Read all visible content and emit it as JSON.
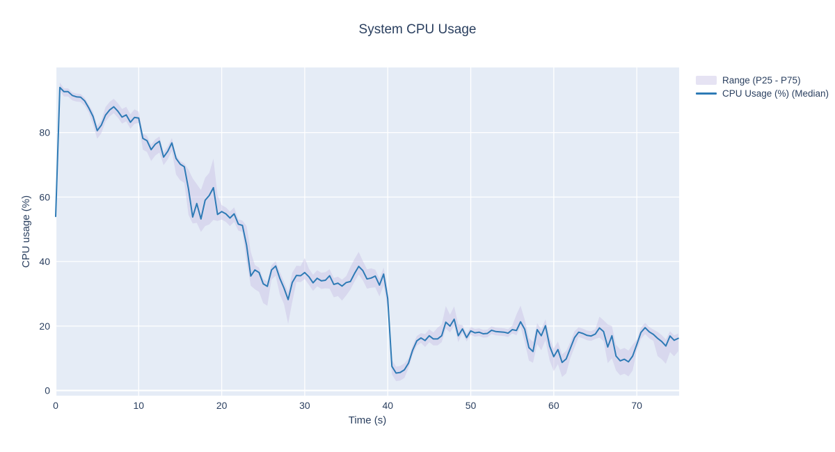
{
  "page": {
    "background": "#ffffff"
  },
  "chart_data": {
    "type": "line",
    "title": "System CPU Usage",
    "xlabel": "Time (s)",
    "ylabel": "CPU usage (%)",
    "xlim": [
      0,
      75.1
    ],
    "ylim": [
      -1.6,
      100.2
    ],
    "x_ticks": [
      0,
      10,
      20,
      30,
      40,
      50,
      60,
      70
    ],
    "y_ticks": [
      0,
      20,
      40,
      60,
      80
    ],
    "grid": true,
    "legend_position": "outside-top-right",
    "colors": {
      "plot_bg": "#e5ecf6",
      "grid": "#ffffff",
      "text": "#2a3f5f",
      "line": "#2d7ab5",
      "band_fill": "rgba(200,192,228,0.45)"
    },
    "x": [
      0,
      0.5,
      1,
      1.5,
      2,
      2.5,
      3,
      3.5,
      4,
      4.5,
      5,
      5.5,
      6,
      6.5,
      7,
      7.5,
      8,
      8.5,
      9,
      9.5,
      10,
      10.5,
      11,
      11.5,
      12,
      12.5,
      13,
      13.5,
      14,
      14.5,
      15,
      15.5,
      16,
      16.5,
      17,
      17.5,
      18,
      18.5,
      19,
      19.5,
      20,
      20.5,
      21,
      21.5,
      22,
      22.5,
      23,
      23.5,
      24,
      24.5,
      25,
      25.5,
      26,
      26.5,
      27,
      27.5,
      28,
      28.5,
      29,
      29.5,
      30,
      30.5,
      31,
      31.5,
      32,
      32.5,
      33,
      33.5,
      34,
      34.5,
      35,
      35.5,
      36,
      36.5,
      37,
      37.5,
      38,
      38.5,
      39,
      39.5,
      40,
      40.5,
      41,
      41.5,
      42,
      42.5,
      43,
      43.5,
      44,
      44.5,
      45,
      45.5,
      46,
      46.5,
      47,
      47.5,
      48,
      48.5,
      49,
      49.5,
      50,
      50.5,
      51,
      51.5,
      52,
      52.5,
      53,
      53.5,
      54,
      54.5,
      55,
      55.5,
      56,
      56.5,
      57,
      57.5,
      58,
      58.5,
      59,
      59.5,
      60,
      60.5,
      61,
      61.5,
      62,
      62.5,
      63,
      63.5,
      64,
      64.5,
      65,
      65.5,
      66,
      66.5,
      67,
      67.5,
      68,
      68.5,
      69,
      69.5,
      70,
      70.5,
      71,
      71.5,
      72,
      72.5,
      73,
      73.5,
      74,
      74.5,
      75
    ],
    "series": [
      {
        "name": "Range (P25 - P75)",
        "type": "band",
        "p75": [
          55.5,
          95.5,
          93.7,
          93.7,
          92.5,
          92.1,
          92,
          90.8,
          88.6,
          86.5,
          82.1,
          83.8,
          87.9,
          89.5,
          90.5,
          89.1,
          87.3,
          88,
          85.7,
          87.2,
          86.5,
          79.7,
          79,
          76.2,
          77.9,
          78.8,
          73.9,
          75.7,
          78.3,
          73,
          71.2,
          70.4,
          68.5,
          65.8,
          64,
          62.2,
          66,
          67.5,
          71.9,
          60.6,
          57.5,
          56.8,
          55.5,
          56.8,
          53.1,
          52.7,
          51,
          43,
          38.9,
          38.1,
          34.6,
          33.8,
          38.9,
          40.1,
          36.8,
          33.8,
          30.7,
          36.5,
          38.7,
          38.6,
          41.1,
          37.8,
          35.9,
          37.3,
          36.5,
          36.7,
          37.6,
          34.9,
          35.3,
          34.4,
          35.5,
          38.3,
          40.8,
          43,
          40.2,
          37.6,
          37.9,
          37.5,
          34.7,
          38.1,
          31.5,
          9.5,
          7.4,
          7.6,
          8.4,
          10,
          14,
          16.9,
          17.8,
          17.5,
          19,
          18,
          19.5,
          20.5,
          26.2,
          23.5,
          26.1,
          20.5,
          20.3,
          17.6,
          19.7,
          19.1,
          19.3,
          18.8,
          18.9,
          19.9,
          19.5,
          19.4,
          19.3,
          19,
          20.1,
          23.6,
          26.3,
          22,
          16.3,
          15.1,
          20.9,
          19,
          22.1,
          16.3,
          13,
          15.2,
          11.2,
          12.3,
          15.1,
          18.4,
          19.6,
          19.2,
          18.6,
          18.4,
          19,
          22.9,
          21.8,
          20.5,
          20,
          14.2,
          12.7,
          13.2,
          12.4,
          14.2,
          15.8,
          19.5,
          21,
          19.7,
          18.9,
          18.2,
          17.2,
          15.8,
          18.4,
          17.1,
          17.7
        ],
        "p25": [
          53,
          93,
          91.2,
          91.2,
          90,
          89.6,
          89.5,
          88.3,
          86.1,
          82.5,
          78.1,
          79.8,
          83.4,
          85,
          86,
          84.6,
          82.8,
          83.5,
          81.2,
          82.7,
          83,
          74.7,
          74,
          71.2,
          72.9,
          73.8,
          69.9,
          71.7,
          74.3,
          67,
          65.2,
          64.4,
          54.5,
          51.8,
          52,
          49.2,
          51,
          51.5,
          52.9,
          52.6,
          53,
          52.3,
          51,
          52.3,
          49.6,
          49.2,
          40,
          32.5,
          31.4,
          30.6,
          27.1,
          26.3,
          34.4,
          35.6,
          29.8,
          26.8,
          20.7,
          27.5,
          33.7,
          33.6,
          34.6,
          32.8,
          30.9,
          32.3,
          31.5,
          31.7,
          31.6,
          28.9,
          29.3,
          27.9,
          29.5,
          31.3,
          33.8,
          36,
          34.2,
          31.6,
          31.9,
          32,
          29.2,
          32.6,
          25.5,
          5,
          2.9,
          3.1,
          3.9,
          7,
          11,
          13.9,
          14.8,
          13.5,
          15,
          14,
          14,
          15,
          19.2,
          18,
          20.1,
          15,
          17.9,
          15.2,
          17.3,
          16.7,
          16.9,
          16.4,
          16.5,
          17.5,
          17.1,
          17,
          16.9,
          16.6,
          17.7,
          17.1,
          19.8,
          15,
          9.3,
          8.6,
          14.4,
          12.5,
          15.6,
          9.3,
          6,
          8.2,
          4.2,
          5.3,
          10.1,
          13.4,
          16.6,
          16.2,
          15.6,
          15.4,
          16,
          16.4,
          15.3,
          8.5,
          10,
          6.2,
          4.7,
          5.2,
          4.4,
          6.2,
          12.3,
          16,
          17.5,
          16.2,
          15.4,
          10.7,
          9.7,
          8.3,
          11.9,
          10.6,
          12.2
        ]
      },
      {
        "name": "CPU Usage (%) (Median)",
        "type": "line",
        "values": [
          54,
          94,
          92.7,
          92.7,
          91.5,
          91.1,
          91,
          89.8,
          87.6,
          85,
          80.6,
          82.3,
          85.4,
          87,
          88,
          86.6,
          84.8,
          85.5,
          83.2,
          84.7,
          84.5,
          78.2,
          77.5,
          74.7,
          76.4,
          77.3,
          72.4,
          74.2,
          76.8,
          72,
          70.2,
          69.4,
          62.5,
          53.8,
          58,
          53.2,
          59,
          60.5,
          62.9,
          54.6,
          55.5,
          54.8,
          53.5,
          54.8,
          51.6,
          51.2,
          45,
          35.5,
          37.4,
          36.6,
          33.1,
          32.3,
          37.4,
          38.6,
          34.8,
          31.8,
          28.2,
          33.5,
          35.7,
          35.6,
          36.6,
          35.3,
          33.4,
          34.8,
          34,
          34.2,
          35.6,
          32.9,
          33.3,
          32.4,
          33.5,
          33.8,
          36.3,
          38.5,
          37.2,
          34.6,
          34.9,
          35.5,
          32.7,
          36.1,
          28.5,
          7.5,
          5.4,
          5.6,
          6.4,
          8.5,
          12.5,
          15.4,
          16.3,
          15.5,
          17,
          16,
          16,
          17,
          21.2,
          20,
          22.1,
          17,
          19.1,
          16.4,
          18.5,
          17.9,
          18.1,
          17.6,
          17.7,
          18.7,
          18.3,
          18.2,
          18.1,
          17.8,
          18.9,
          18.6,
          21.3,
          19,
          13.3,
          12.1,
          18.9,
          17,
          20.1,
          13.8,
          10.5,
          12.7,
          8.7,
          9.8,
          13.1,
          16.4,
          18.1,
          17.7,
          17.1,
          16.9,
          17.5,
          19.4,
          18.3,
          13.5,
          17,
          10.7,
          9.2,
          9.7,
          8.9,
          10.7,
          14.3,
          18,
          19.5,
          18.2,
          17.4,
          16.2,
          15.2,
          13.8,
          16.9,
          15.6,
          16.2
        ]
      }
    ]
  }
}
